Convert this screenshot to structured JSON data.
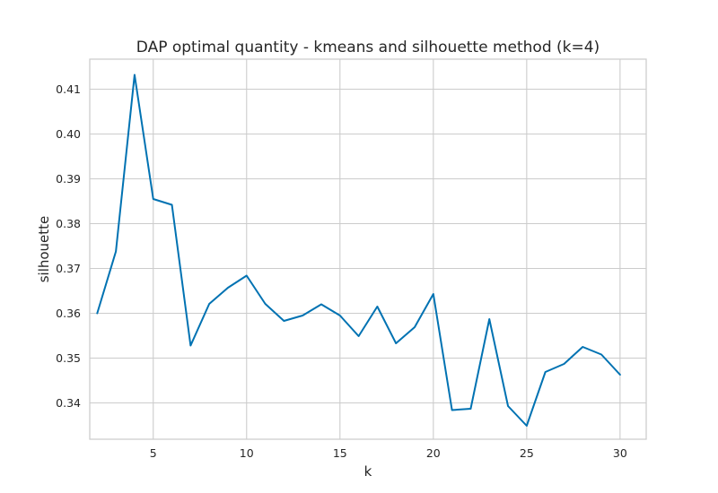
{
  "chart_data": {
    "type": "line",
    "title": "DAP optimal quantity - kmeans and silhouette method (k=4)",
    "xlabel": "k",
    "ylabel": "silhouette",
    "xlim": [
      1.6,
      31.4
    ],
    "ylim": [
      0.3319,
      0.4167
    ],
    "grid": true,
    "x_ticks": [
      5,
      10,
      15,
      20,
      25,
      30
    ],
    "y_ticks": [
      0.34,
      0.35,
      0.36,
      0.37,
      0.38,
      0.39,
      0.4,
      0.41
    ],
    "y_tick_labels": [
      "0.34",
      "0.35",
      "0.36",
      "0.37",
      "0.38",
      "0.39",
      "0.40",
      "0.41"
    ],
    "line_color": "#0072b2",
    "series": [
      {
        "x": [
          2,
          3,
          4,
          5,
          6,
          7,
          8,
          9,
          10,
          11,
          12,
          13,
          14,
          15,
          16,
          17,
          18,
          19,
          20,
          21,
          22,
          23,
          24,
          25,
          26,
          27,
          28,
          29,
          30
        ],
        "values": [
          0.36,
          0.3738,
          0.4132,
          0.3855,
          0.3842,
          0.3528,
          0.3621,
          0.3657,
          0.3684,
          0.3621,
          0.3583,
          0.3595,
          0.362,
          0.3595,
          0.3549,
          0.3615,
          0.3533,
          0.3569,
          0.3643,
          0.3384,
          0.3387,
          0.3587,
          0.3393,
          0.3349,
          0.3469,
          0.3487,
          0.3525,
          0.3508,
          0.3463
        ]
      }
    ]
  }
}
